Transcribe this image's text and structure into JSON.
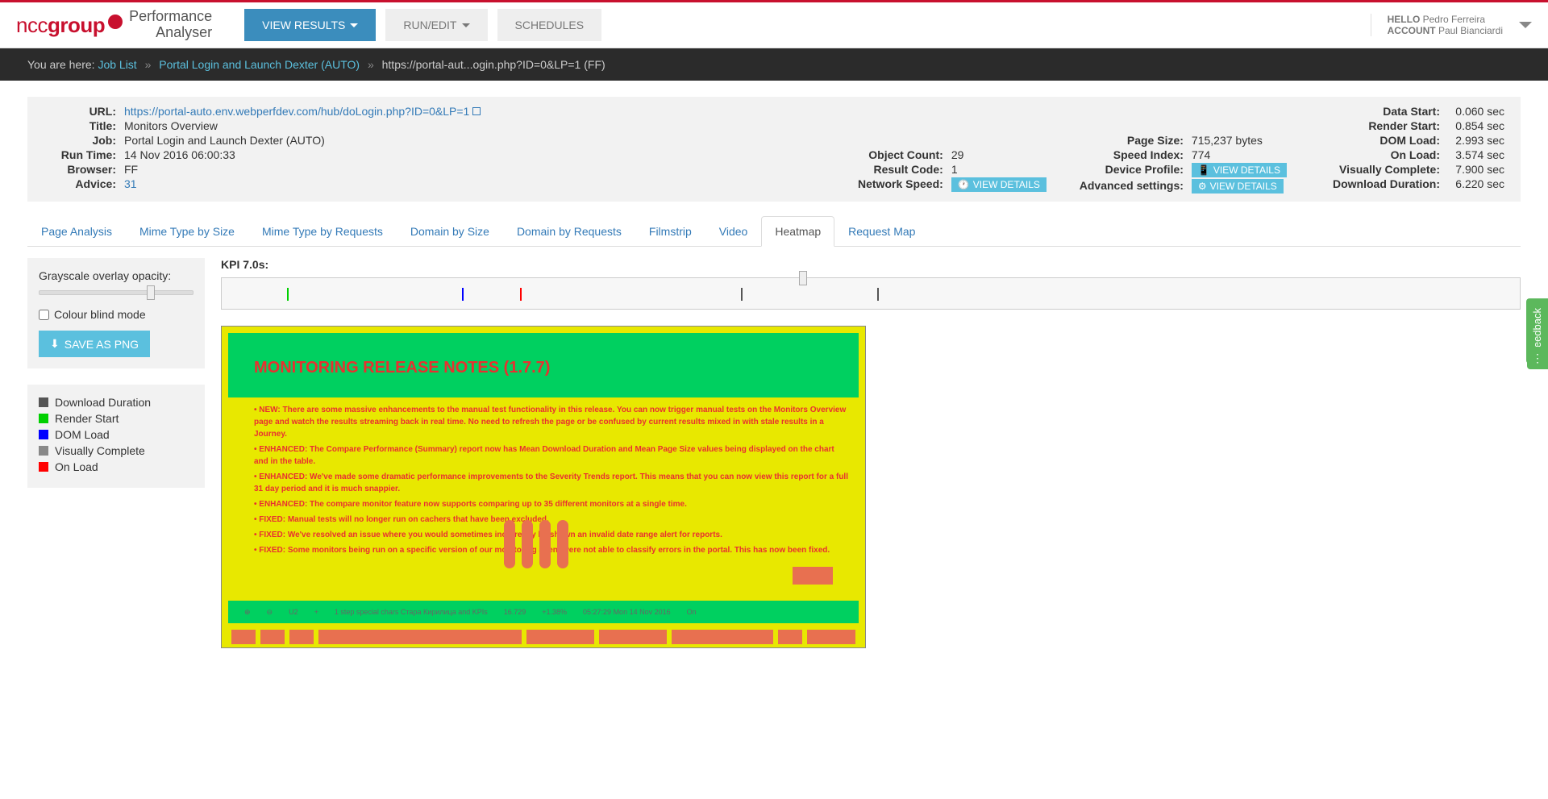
{
  "logo": {
    "brand1": "ncc",
    "brand2": "group",
    "sub1": "Performance",
    "sub2": "Analyser"
  },
  "nav": {
    "view_results": "VIEW RESULTS",
    "run_edit": "RUN/EDIT",
    "schedules": "SCHEDULES"
  },
  "account": {
    "hello_label": "HELLO",
    "hello_name": "Pedro Ferreira",
    "account_label": "ACCOUNT",
    "account_name": "Paul Bianciardi"
  },
  "breadcrumb": {
    "prefix": "You are here:",
    "items": [
      "Job List",
      "Portal Login and Launch Dexter (AUTO)"
    ],
    "current": "https://portal-aut...ogin.php?ID=0&LP=1 (FF)"
  },
  "summary": {
    "col1": {
      "url_label": "URL:",
      "url_val": "https://portal-auto.env.webperfdev.com/hub/doLogin.php?ID=0&LP=1",
      "title_label": "Title:",
      "title_val": "Monitors Overview",
      "job_label": "Job:",
      "job_val": "Portal Login and Launch Dexter (AUTO)",
      "runtime_label": "Run Time:",
      "runtime_val": "14 Nov 2016 06:00:33",
      "browser_label": "Browser:",
      "browser_val": "FF",
      "advice_label": "Advice:",
      "advice_val": "31"
    },
    "col2": {
      "objcount_label": "Object Count:",
      "objcount_val": "29",
      "result_label": "Result Code:",
      "result_val": "1",
      "netspeed_label": "Network Speed:"
    },
    "col3": {
      "pagesize_label": "Page Size:",
      "pagesize_val": "715,237 bytes",
      "speedidx_label": "Speed Index:",
      "speedidx_val": "774",
      "device_label": "Device Profile:",
      "advset_label": "Advanced settings:"
    },
    "col4": {
      "datastart_label": "Data Start:",
      "datastart_val": "0.060 sec",
      "renderstart_label": "Render Start:",
      "renderstart_val": "0.854 sec",
      "domload_label": "DOM Load:",
      "domload_val": "2.993 sec",
      "onload_label": "On Load:",
      "onload_val": "3.574 sec",
      "viscomp_label": "Visually Complete:",
      "viscomp_val": "7.900 sec",
      "dldur_label": "Download Duration:",
      "dldur_val": "6.220 sec"
    },
    "view_details": "VIEW DETAILS"
  },
  "tabs": [
    "Page Analysis",
    "Mime Type by Size",
    "Mime Type by Requests",
    "Domain by Size",
    "Domain by Requests",
    "Filmstrip",
    "Video",
    "Heatmap",
    "Request Map"
  ],
  "active_tab": "Heatmap",
  "sidebar": {
    "opacity_label": "Grayscale overlay opacity:",
    "colorblind_label": "Colour blind mode",
    "save_png": "SAVE AS PNG"
  },
  "legend": [
    {
      "color": "#555555",
      "label": "Download Duration"
    },
    {
      "color": "#00d000",
      "label": "Render Start"
    },
    {
      "color": "#0000ff",
      "label": "DOM Load"
    },
    {
      "color": "#888888",
      "label": "Visually Complete"
    },
    {
      "color": "#ff0000",
      "label": "On Load"
    }
  ],
  "kpi_label": "KPI 7.0s:",
  "timeline": {
    "thumb_pct": 44.5,
    "ticks": [
      {
        "pct": 5,
        "color": "#00d000"
      },
      {
        "pct": 18.5,
        "color": "#0000ff"
      },
      {
        "pct": 23,
        "color": "#ff0000"
      },
      {
        "pct": 40,
        "color": "#555555"
      },
      {
        "pct": 50.5,
        "color": "#555555"
      }
    ]
  },
  "heatmap_content": {
    "title": "MONITORING RELEASE NOTES (1.7.7)",
    "lines": [
      "NEW: There are some massive enhancements to the manual test functionality in this release. You can now trigger manual tests on the Monitors Overview page and watch the results streaming back in real time. No need to refresh the page or be confused by current results mixed in with stale results in a Journey.",
      "ENHANCED: The Compare Performance (Summary) report now has Mean Download Duration and Mean Page Size values being displayed on the chart and in the table.",
      "ENHANCED: We've made some dramatic performance improvements to the Severity Trends report. This means that you can now view this report for a full 31 day period and it is much snappier.",
      "ENHANCED: The compare monitor feature now supports comparing up to 35 different monitors at a single time.",
      "FIXED: Manual tests will no longer run on cachers that have been excluded.",
      "FIXED: We've resolved an issue where you would sometimes incorrectly be shown an invalid date range alert for reports.",
      "FIXED: Some monitors being run on a specific version of our monitoring agent were not able to classify errors in the portal. This has now been fixed."
    ],
    "footer_items": [
      "⊕",
      "⊖",
      "U2",
      "+",
      "1 step special chars Стара Кирилица and KPIs",
      "16.729",
      "+1.38%",
      "05:27:29 Mon 14 Nov 2016",
      "On"
    ]
  },
  "feedback": "Feedback"
}
